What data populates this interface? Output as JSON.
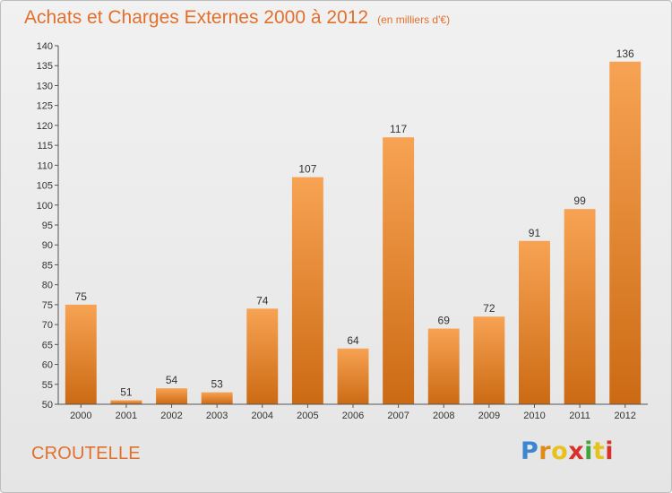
{
  "title": "Achats et Charges Externes 2000 à 2012",
  "subtitle": "(en milliers d'€)",
  "commune": "CROUTELLE",
  "logo": {
    "letters": [
      "P",
      "r",
      "o",
      "x",
      "i",
      "t",
      "i"
    ],
    "colors": [
      "#3a86d0",
      "#e08a1e",
      "#e8c21c",
      "#d8332a",
      "#43a43a",
      "#e8c21c",
      "#d8332a"
    ]
  },
  "colors": {
    "accent": "#e2702c",
    "bar_light": "#f7a353",
    "bar_dark": "#cc6a14"
  },
  "chart_data": {
    "type": "bar",
    "title": "Achats et Charges Externes 2000 à 2012",
    "subtitle": "(en milliers d'€)",
    "categories": [
      "2000",
      "2001",
      "2002",
      "2003",
      "2004",
      "2005",
      "2006",
      "2007",
      "2008",
      "2009",
      "2010",
      "2011",
      "2012"
    ],
    "values": [
      75,
      51,
      54,
      53,
      74,
      107,
      64,
      117,
      69,
      72,
      91,
      99,
      136
    ],
    "ylim": [
      50,
      140
    ],
    "yticks": [
      50,
      55,
      60,
      65,
      70,
      75,
      80,
      85,
      90,
      95,
      100,
      105,
      110,
      115,
      120,
      125,
      130,
      135,
      140
    ],
    "grid": false,
    "legend": "none"
  }
}
